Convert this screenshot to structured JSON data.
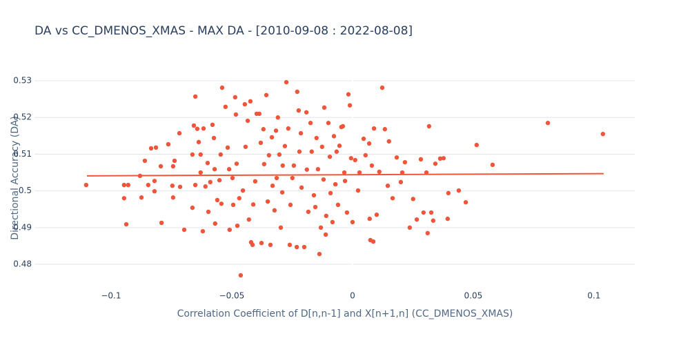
{
  "chart_data": {
    "type": "scatter",
    "title": "DA vs CC_DMENOS_XMAS - MAX DA - [2010-09-08 : 2022-08-08]",
    "x_label": "Correlation Coefficient of D[n,n-1] and X[n+1,n] (CC_DMENOS_XMAS)",
    "y_label": "Directional Accuracy (DA)",
    "xlim": [
      -0.1317,
      0.1169
    ],
    "ylim": [
      0.4755,
      0.5332
    ],
    "xticks": [
      {
        "value": -0.1,
        "label": "−0.1"
      },
      {
        "value": -0.05,
        "label": "−0.05"
      },
      0,
      0.05,
      0.1
    ],
    "yticks": [
      0.48,
      0.49,
      0.5,
      0.51,
      0.52,
      0.53
    ],
    "grid": true,
    "zeroline": true,
    "series": [
      {
        "type": "scatter",
        "color": "#ef553b",
        "x": [
          -0.1103,
          -0.0946,
          -0.0929,
          -0.0946,
          -0.0937,
          -0.088,
          -0.0874,
          -0.086,
          -0.0846,
          -0.0834,
          -0.0814,
          -0.082,
          -0.082,
          -0.0794,
          -0.0791,
          -0.0763,
          -0.0746,
          -0.0743,
          -0.0743,
          -0.0737,
          -0.0717,
          -0.0714,
          -0.0697,
          -0.0663,
          -0.0663,
          -0.0657,
          -0.0651,
          -0.0651,
          -0.0643,
          -0.0637,
          -0.0629,
          -0.0629,
          -0.062,
          -0.0617,
          -0.0609,
          -0.06,
          -0.0597,
          -0.0589,
          -0.058,
          -0.0574,
          -0.0571,
          -0.0569,
          -0.056,
          -0.0551,
          -0.0546,
          -0.0543,
          -0.054,
          -0.0526,
          -0.0517,
          -0.0511,
          -0.0509,
          -0.0497,
          -0.0494,
          -0.0486,
          -0.0483,
          -0.048,
          -0.0477,
          -0.0469,
          -0.0463,
          -0.0454,
          -0.0446,
          -0.0443,
          -0.0434,
          -0.0429,
          -0.0423,
          -0.042,
          -0.0414,
          -0.0411,
          -0.0403,
          -0.0397,
          -0.0386,
          -0.038,
          -0.0377,
          -0.0369,
          -0.0366,
          -0.0357,
          -0.0351,
          -0.0346,
          -0.034,
          -0.0334,
          -0.0331,
          -0.0323,
          -0.0317,
          -0.0314,
          -0.0309,
          -0.0303,
          -0.0297,
          -0.0291,
          -0.0289,
          -0.028,
          -0.0274,
          -0.0266,
          -0.026,
          -0.0257,
          -0.0249,
          -0.0243,
          -0.0231,
          -0.0229,
          -0.0223,
          -0.022,
          -0.0214,
          -0.0211,
          -0.02,
          -0.0191,
          -0.0189,
          -0.0183,
          -0.0174,
          -0.0169,
          -0.016,
          -0.0154,
          -0.0149,
          -0.0143,
          -0.0137,
          -0.0131,
          -0.0126,
          -0.012,
          -0.0117,
          -0.0111,
          -0.0109,
          -0.01,
          -0.0094,
          -0.0091,
          -0.0083,
          -0.0077,
          -0.0071,
          -0.0066,
          -0.006,
          -0.0054,
          -0.0046,
          -0.004,
          -0.0034,
          -0.0031,
          -0.0023,
          -0.0017,
          -0.0011,
          -0.0006,
          0,
          0.0011,
          0.0023,
          0.0029,
          0.0046,
          0.0054,
          0.0069,
          0.0071,
          0.0074,
          0.008,
          0.0086,
          0.0089,
          0.01,
          0.0111,
          0.0123,
          0.0134,
          0.0146,
          0.0151,
          0.0166,
          0.0183,
          0.02,
          0.0206,
          0.0217,
          0.0237,
          0.0251,
          0.0266,
          0.0283,
          0.0294,
          0.0306,
          0.0311,
          0.0317,
          0.0326,
          0.0334,
          0.0343,
          0.0363,
          0.0377,
          0.0397,
          0.0394,
          0.044,
          0.0469,
          0.0514,
          0.058,
          0.0809,
          0.1037
        ],
        "values": [
          0.5016,
          0.5016,
          0.5016,
          0.498,
          0.4909,
          0.5041,
          0.4982,
          0.5082,
          0.5016,
          0.5116,
          0.5118,
          0.5027,
          0.4999,
          0.5067,
          0.4913,
          0.5127,
          0.5014,
          0.4982,
          0.5067,
          0.5082,
          0.5157,
          0.5011,
          0.4894,
          0.5099,
          0.4954,
          0.5178,
          0.5257,
          0.5016,
          0.5169,
          0.5133,
          0.5099,
          0.505,
          0.489,
          0.517,
          0.5012,
          0.5076,
          0.4943,
          0.5024,
          0.518,
          0.5144,
          0.5059,
          0.4911,
          0.4975,
          0.5029,
          0.5099,
          0.4965,
          0.5281,
          0.5229,
          0.5118,
          0.5059,
          0.4894,
          0.5035,
          0.4962,
          0.5255,
          0.5208,
          0.5074,
          0.4905,
          0.498,
          0.477,
          0.5001,
          0.5236,
          0.512,
          0.5191,
          0.4922,
          0.5244,
          0.486,
          0.4853,
          0.4963,
          0.5026,
          0.521,
          0.521,
          0.5131,
          0.4858,
          0.5168,
          0.5073,
          0.5261,
          0.4971,
          0.5097,
          0.4853,
          0.5146,
          0.5014,
          0.4947,
          0.5164,
          0.5035,
          0.52,
          0.5099,
          0.49,
          0.4996,
          0.5069,
          0.5122,
          0.5296,
          0.517,
          0.4853,
          0.4962,
          0.5035,
          0.5069,
          0.4847,
          0.527,
          0.5219,
          0.5107,
          0.5157,
          0.5009,
          0.4847,
          0.5214,
          0.5058,
          0.4943,
          0.5185,
          0.5107,
          0.4988,
          0.4956,
          0.5144,
          0.5059,
          0.4828,
          0.49,
          0.512,
          0.5031,
          0.5227,
          0.4881,
          0.4932,
          0.5185,
          0.5093,
          0.4994,
          0.4915,
          0.5149,
          0.5018,
          0.5107,
          0.4962,
          0.5123,
          0.5174,
          0.5176,
          0.505,
          0.5027,
          0.4941,
          0.5263,
          0.5233,
          0.5089,
          0.4915,
          0.5084,
          0.5001,
          0.505,
          0.5142,
          0.5097,
          0.5129,
          0.4924,
          0.4866,
          0.5069,
          0.4862,
          0.517,
          0.4935,
          0.5052,
          0.5281,
          0.5168,
          0.5014,
          0.5135,
          0.498,
          0.5091,
          0.5024,
          0.505,
          0.5078,
          0.49,
          0.4978,
          0.4922,
          0.5086,
          0.4941,
          0.505,
          0.4885,
          0.5176,
          0.4941,
          0.4919,
          0.5074,
          0.5088,
          0.5089,
          0.4994,
          0.4924,
          0.5001,
          0.4969,
          0.5125,
          0.5071,
          0.5185,
          0.5155
        ]
      },
      {
        "type": "line",
        "color": "#ef553b",
        "x": [
          -0.11,
          0.104
        ],
        "values": [
          0.5041,
          0.5047
        ]
      }
    ]
  }
}
